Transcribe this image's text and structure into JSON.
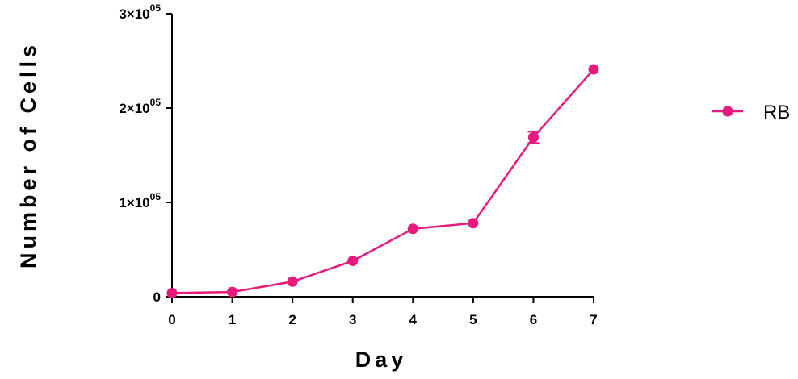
{
  "chart_data": {
    "type": "line",
    "xlabel": "Day",
    "ylabel": "Number of Cells",
    "xlim": [
      0,
      7
    ],
    "ylim": [
      0,
      300000
    ],
    "x_ticks": [
      0,
      1,
      2,
      3,
      4,
      5,
      6,
      7
    ],
    "x_tick_labels": [
      "0",
      "1",
      "2",
      "3",
      "4",
      "5",
      "6",
      "7"
    ],
    "y_ticks": [
      0,
      100000,
      200000,
      300000
    ],
    "y_tick_labels": [
      {
        "base": "0",
        "exp": ""
      },
      {
        "base": "1×10",
        "exp": "05"
      },
      {
        "base": "2×10",
        "exp": "05"
      },
      {
        "base": "3×10",
        "exp": "05"
      }
    ],
    "grid": false,
    "legend_position": "right",
    "series": [
      {
        "name": "RB",
        "color": "#e8197d",
        "marker": "circle",
        "x": [
          0,
          1,
          2,
          3,
          4,
          5,
          6,
          7
        ],
        "y": [
          4000,
          5000,
          16000,
          38000,
          72000,
          78000,
          169000,
          241000
        ],
        "error": [
          0,
          0,
          0,
          0,
          0,
          0,
          6000,
          0
        ]
      }
    ]
  }
}
